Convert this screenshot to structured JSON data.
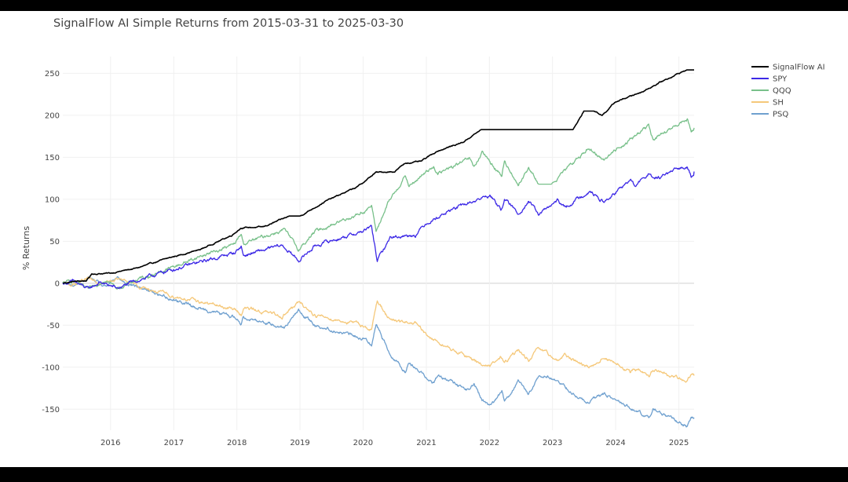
{
  "chart_data": {
    "type": "line",
    "title": "SignalFlow AI Simple Returns from 2015-03-31 to 2025-03-30",
    "xlabel": "",
    "ylabel": "% Returns",
    "x_range": [
      "2015-03-31",
      "2025-03-30"
    ],
    "ylim": [
      -175,
      270
    ],
    "y_ticks": [
      -150,
      -100,
      -50,
      0,
      50,
      100,
      150,
      200,
      250
    ],
    "x_ticks": [
      {
        "label": "2016",
        "date": "2016-01-01"
      },
      {
        "label": "2017",
        "date": "2017-01-01"
      },
      {
        "label": "2018",
        "date": "2018-01-01"
      },
      {
        "label": "2019",
        "date": "2019-01-01"
      },
      {
        "label": "2020",
        "date": "2020-01-01"
      },
      {
        "label": "2021",
        "date": "2021-01-01"
      },
      {
        "label": "2022",
        "date": "2022-01-01"
      },
      {
        "label": "2023",
        "date": "2023-01-01"
      },
      {
        "label": "2024",
        "date": "2024-01-01"
      },
      {
        "label": "2025",
        "date": "2025-01-01"
      }
    ],
    "grid": true,
    "legend_position": "top-right",
    "series": [
      {
        "name": "SignalFlow AI",
        "color": "#000000",
        "points": [
          [
            "2015-03-31",
            0
          ],
          [
            "2015-06-01",
            2
          ],
          [
            "2015-08-15",
            3
          ],
          [
            "2015-09-15",
            11
          ],
          [
            "2016-01-01",
            12
          ],
          [
            "2016-06-01",
            18
          ],
          [
            "2016-12-01",
            30
          ],
          [
            "2017-06-01",
            40
          ],
          [
            "2017-12-01",
            57
          ],
          [
            "2018-01-25",
            66
          ],
          [
            "2018-06-01",
            67
          ],
          [
            "2018-08-01",
            72
          ],
          [
            "2018-11-01",
            80
          ],
          [
            "2019-01-01",
            80
          ],
          [
            "2019-06-01",
            98
          ],
          [
            "2019-12-01",
            115
          ],
          [
            "2020-01-15",
            122
          ],
          [
            "2020-03-15",
            132
          ],
          [
            "2020-07-01",
            133
          ],
          [
            "2020-09-01",
            143
          ],
          [
            "2020-12-01",
            145
          ],
          [
            "2021-03-01",
            157
          ],
          [
            "2021-08-01",
            168
          ],
          [
            "2021-11-15",
            183
          ],
          [
            "2022-06-01",
            183
          ],
          [
            "2023-01-01",
            183
          ],
          [
            "2023-05-01",
            183
          ],
          [
            "2023-07-01",
            205
          ],
          [
            "2023-09-01",
            205
          ],
          [
            "2023-10-15",
            200
          ],
          [
            "2024-01-01",
            216
          ],
          [
            "2024-06-01",
            228
          ],
          [
            "2024-10-01",
            241
          ],
          [
            "2025-01-01",
            250
          ],
          [
            "2025-02-15",
            254
          ],
          [
            "2025-03-30",
            254
          ]
        ]
      },
      {
        "name": "SPY",
        "color": "#3c28e6",
        "points": [
          [
            "2015-03-31",
            0
          ],
          [
            "2015-06-01",
            2
          ],
          [
            "2015-08-25",
            -7
          ],
          [
            "2015-11-01",
            1
          ],
          [
            "2016-02-11",
            -6
          ],
          [
            "2016-06-01",
            3
          ],
          [
            "2016-12-01",
            15
          ],
          [
            "2017-06-01",
            25
          ],
          [
            "2017-12-15",
            36
          ],
          [
            "2018-01-26",
            44
          ],
          [
            "2018-02-08",
            33
          ],
          [
            "2018-09-20",
            45
          ],
          [
            "2018-12-24",
            27
          ],
          [
            "2019-04-01",
            45
          ],
          [
            "2019-12-31",
            62
          ],
          [
            "2020-02-19",
            67
          ],
          [
            "2020-03-23",
            27
          ],
          [
            "2020-06-08",
            55
          ],
          [
            "2020-10-30",
            58
          ],
          [
            "2021-01-01",
            72
          ],
          [
            "2021-06-01",
            88
          ],
          [
            "2021-09-01",
            95
          ],
          [
            "2022-01-03",
            105
          ],
          [
            "2022-03-08",
            88
          ],
          [
            "2022-03-29",
            100
          ],
          [
            "2022-06-16",
            83
          ],
          [
            "2022-08-16",
            98
          ],
          [
            "2022-10-12",
            82
          ],
          [
            "2023-02-01",
            98
          ],
          [
            "2023-03-13",
            90
          ],
          [
            "2023-07-31",
            110
          ],
          [
            "2023-10-27",
            96
          ],
          [
            "2024-03-28",
            123
          ],
          [
            "2024-04-19",
            115
          ],
          [
            "2024-07-16",
            132
          ],
          [
            "2024-08-05",
            123
          ],
          [
            "2025-02-19",
            140
          ],
          [
            "2025-03-13",
            128
          ],
          [
            "2025-03-30",
            133
          ]
        ]
      },
      {
        "name": "QQQ",
        "color": "#78c08a",
        "points": [
          [
            "2015-03-31",
            0
          ],
          [
            "2015-06-01",
            3
          ],
          [
            "2015-08-25",
            -8
          ],
          [
            "2015-12-01",
            5
          ],
          [
            "2016-02-11",
            -6
          ],
          [
            "2016-06-01",
            4
          ],
          [
            "2016-12-01",
            17
          ],
          [
            "2017-06-01",
            32
          ],
          [
            "2017-12-15",
            46
          ],
          [
            "2018-01-26",
            58
          ],
          [
            "2018-02-08",
            47
          ],
          [
            "2018-10-01",
            64
          ],
          [
            "2018-12-24",
            40
          ],
          [
            "2019-04-01",
            62
          ],
          [
            "2019-12-31",
            85
          ],
          [
            "2020-02-19",
            92
          ],
          [
            "2020-03-16",
            62
          ],
          [
            "2020-06-01",
            98
          ],
          [
            "2020-09-02",
            128
          ],
          [
            "2020-09-23",
            115
          ],
          [
            "2021-02-12",
            140
          ],
          [
            "2021-03-08",
            130
          ],
          [
            "2021-09-07",
            148
          ],
          [
            "2021-10-04",
            138
          ],
          [
            "2021-11-19",
            155
          ],
          [
            "2022-03-14",
            128
          ],
          [
            "2022-03-29",
            145
          ],
          [
            "2022-06-16",
            118
          ],
          [
            "2022-08-16",
            137
          ],
          [
            "2022-10-13",
            118
          ],
          [
            "2022-12-28",
            118
          ],
          [
            "2023-07-19",
            160
          ],
          [
            "2023-10-26",
            148
          ],
          [
            "2024-07-10",
            188
          ],
          [
            "2024-08-05",
            170
          ],
          [
            "2025-02-19",
            196
          ],
          [
            "2025-03-13",
            180
          ],
          [
            "2025-03-30",
            185
          ]
        ]
      },
      {
        "name": "SH",
        "color": "#f5c87a",
        "points": [
          [
            "2015-03-31",
            0
          ],
          [
            "2015-06-01",
            -2
          ],
          [
            "2015-08-25",
            6
          ],
          [
            "2015-11-01",
            -2
          ],
          [
            "2016-02-11",
            5
          ],
          [
            "2016-06-01",
            -3
          ],
          [
            "2016-12-01",
            -14
          ],
          [
            "2017-06-01",
            -22
          ],
          [
            "2017-12-15",
            -31
          ],
          [
            "2018-01-26",
            -37
          ],
          [
            "2018-02-08",
            -29
          ],
          [
            "2018-09-20",
            -39
          ],
          [
            "2018-12-24",
            -23
          ],
          [
            "2019-04-01",
            -38
          ],
          [
            "2019-12-31",
            -50
          ],
          [
            "2020-02-19",
            -56
          ],
          [
            "2020-03-23",
            -20
          ],
          [
            "2020-06-08",
            -45
          ],
          [
            "2020-10-30",
            -48
          ],
          [
            "2021-01-01",
            -62
          ],
          [
            "2021-06-01",
            -80
          ],
          [
            "2021-09-01",
            -88
          ],
          [
            "2022-01-03",
            -100
          ],
          [
            "2022-03-08",
            -88
          ],
          [
            "2022-03-29",
            -95
          ],
          [
            "2022-06-16",
            -80
          ],
          [
            "2022-08-16",
            -92
          ],
          [
            "2022-10-12",
            -78
          ],
          [
            "2023-02-01",
            -92
          ],
          [
            "2023-03-13",
            -86
          ],
          [
            "2023-07-31",
            -100
          ],
          [
            "2023-10-27",
            -88
          ],
          [
            "2024-03-28",
            -107
          ],
          [
            "2024-04-19",
            -100
          ],
          [
            "2024-07-16",
            -112
          ],
          [
            "2024-08-05",
            -104
          ],
          [
            "2025-02-19",
            -117
          ],
          [
            "2025-03-13",
            -108
          ],
          [
            "2025-03-30",
            -110
          ]
        ]
      },
      {
        "name": "PSQ",
        "color": "#6fa0cf",
        "points": [
          [
            "2015-03-31",
            0
          ],
          [
            "2015-06-01",
            -3
          ],
          [
            "2015-08-25",
            7
          ],
          [
            "2015-12-01",
            -5
          ],
          [
            "2016-02-11",
            6
          ],
          [
            "2016-06-01",
            -4
          ],
          [
            "2016-12-01",
            -17
          ],
          [
            "2017-06-01",
            -30
          ],
          [
            "2017-12-15",
            -40
          ],
          [
            "2018-01-26",
            -48
          ],
          [
            "2018-02-08",
            -40
          ],
          [
            "2018-10-01",
            -52
          ],
          [
            "2018-12-24",
            -33
          ],
          [
            "2019-04-01",
            -50
          ],
          [
            "2019-12-31",
            -66
          ],
          [
            "2020-02-19",
            -72
          ],
          [
            "2020-03-16",
            -48
          ],
          [
            "2020-06-01",
            -82
          ],
          [
            "2020-09-02",
            -105
          ],
          [
            "2020-09-23",
            -95
          ],
          [
            "2021-02-12",
            -118
          ],
          [
            "2021-03-08",
            -110
          ],
          [
            "2021-09-07",
            -128
          ],
          [
            "2021-10-04",
            -120
          ],
          [
            "2021-11-19",
            -138
          ],
          [
            "2022-01-01",
            -148
          ],
          [
            "2022-03-14",
            -128
          ],
          [
            "2022-03-29",
            -140
          ],
          [
            "2022-06-16",
            -118
          ],
          [
            "2022-08-16",
            -132
          ],
          [
            "2022-10-13",
            -110
          ],
          [
            "2022-12-28",
            -112
          ],
          [
            "2023-07-19",
            -143
          ],
          [
            "2023-10-26",
            -132
          ],
          [
            "2024-07-10",
            -160
          ],
          [
            "2024-08-05",
            -150
          ],
          [
            "2025-02-19",
            -170
          ],
          [
            "2025-03-13",
            -158
          ],
          [
            "2025-03-30",
            -160
          ]
        ]
      }
    ]
  }
}
